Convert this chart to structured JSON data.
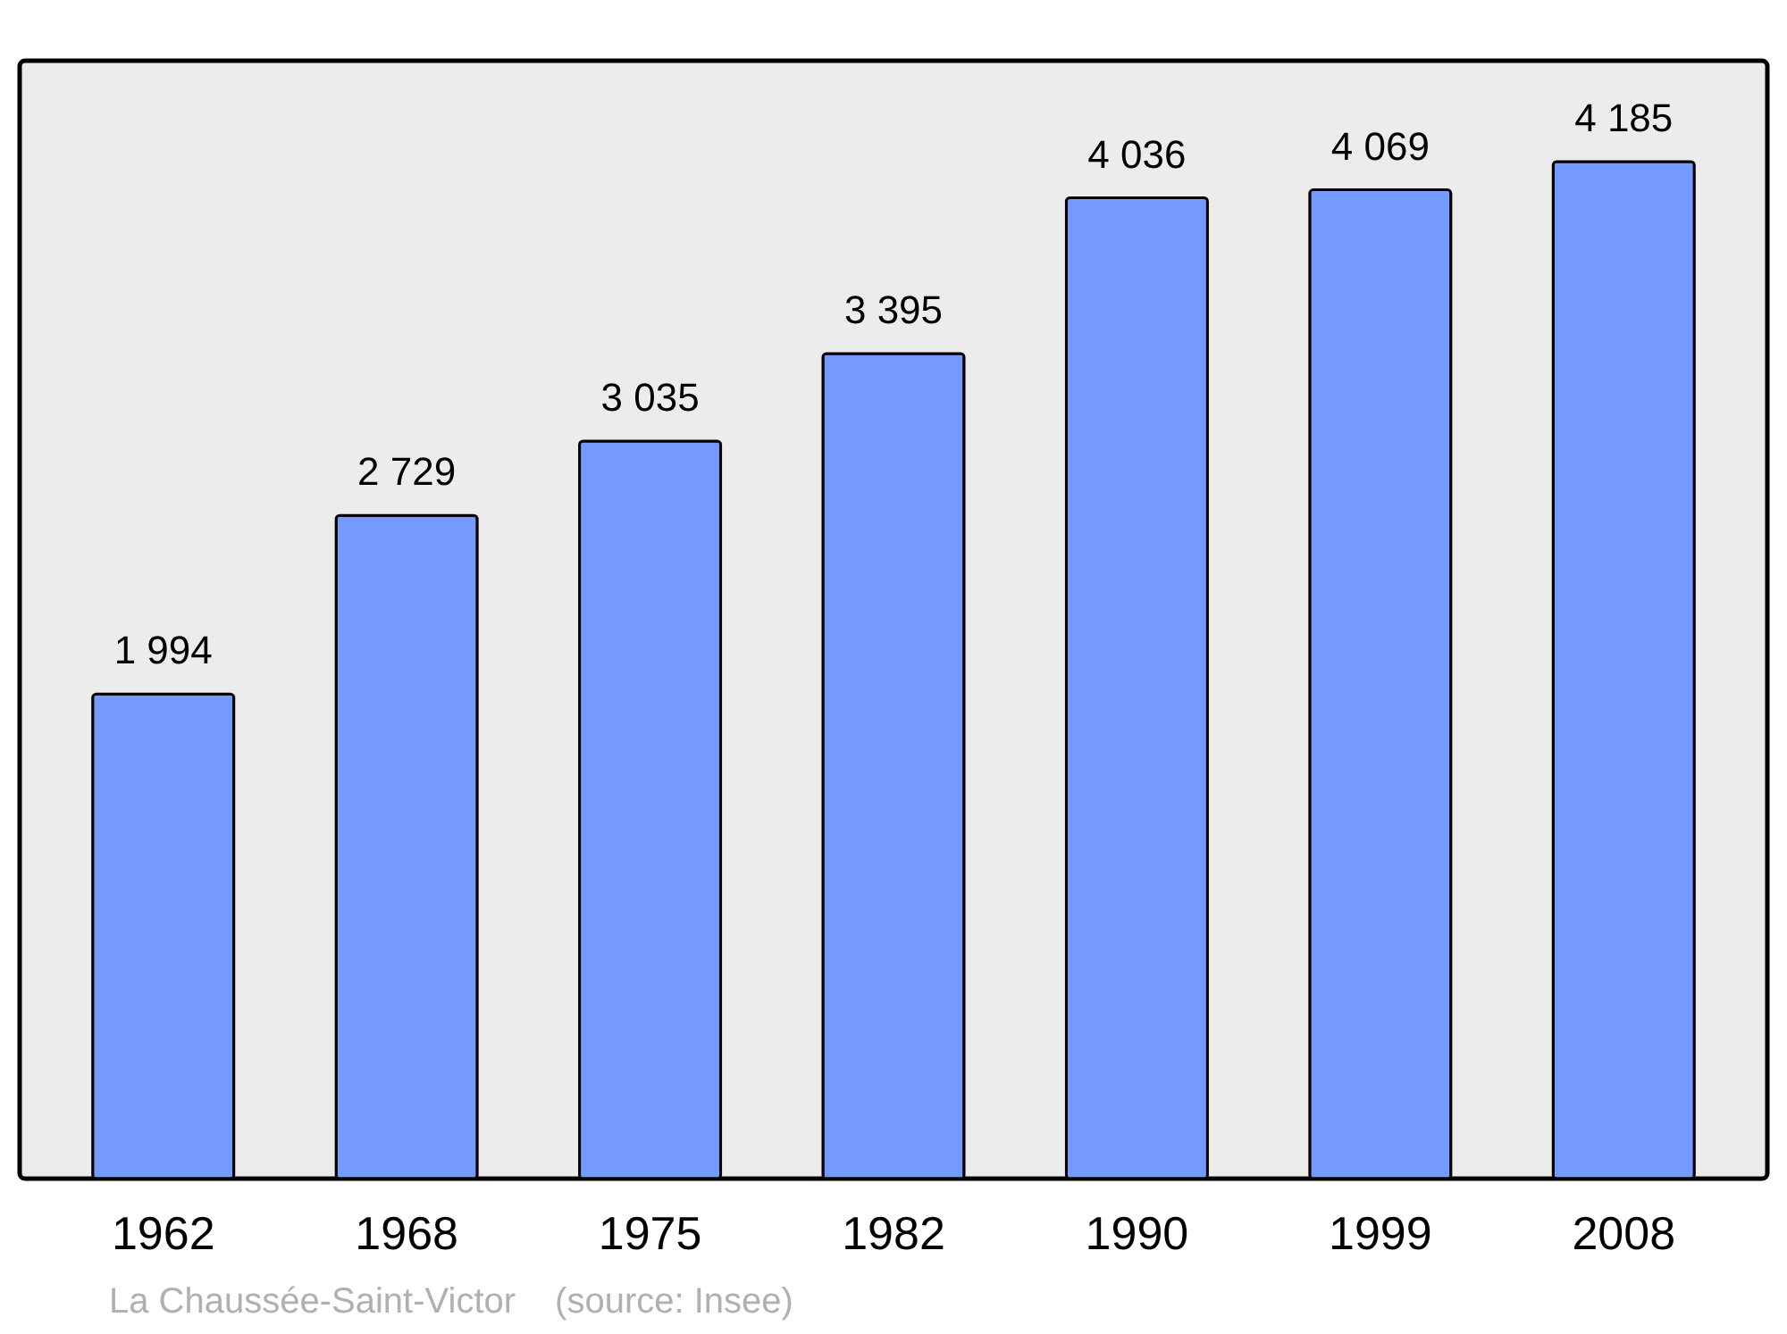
{
  "chart_data": {
    "type": "bar",
    "categories": [
      "1962",
      "1968",
      "1975",
      "1982",
      "1990",
      "1999",
      "2008"
    ],
    "values": [
      1994,
      2729,
      3035,
      3395,
      4036,
      4069,
      4185
    ],
    "value_labels": [
      "1 994",
      "2 729",
      "3 035",
      "3 395",
      "4 036",
      "4 069",
      "4 185"
    ],
    "color": "#7499ff",
    "ylim": [
      0,
      4600
    ],
    "grid": false,
    "annotations": [
      "La Chaussée-Saint-Victor",
      "(source: Insee)"
    ]
  }
}
